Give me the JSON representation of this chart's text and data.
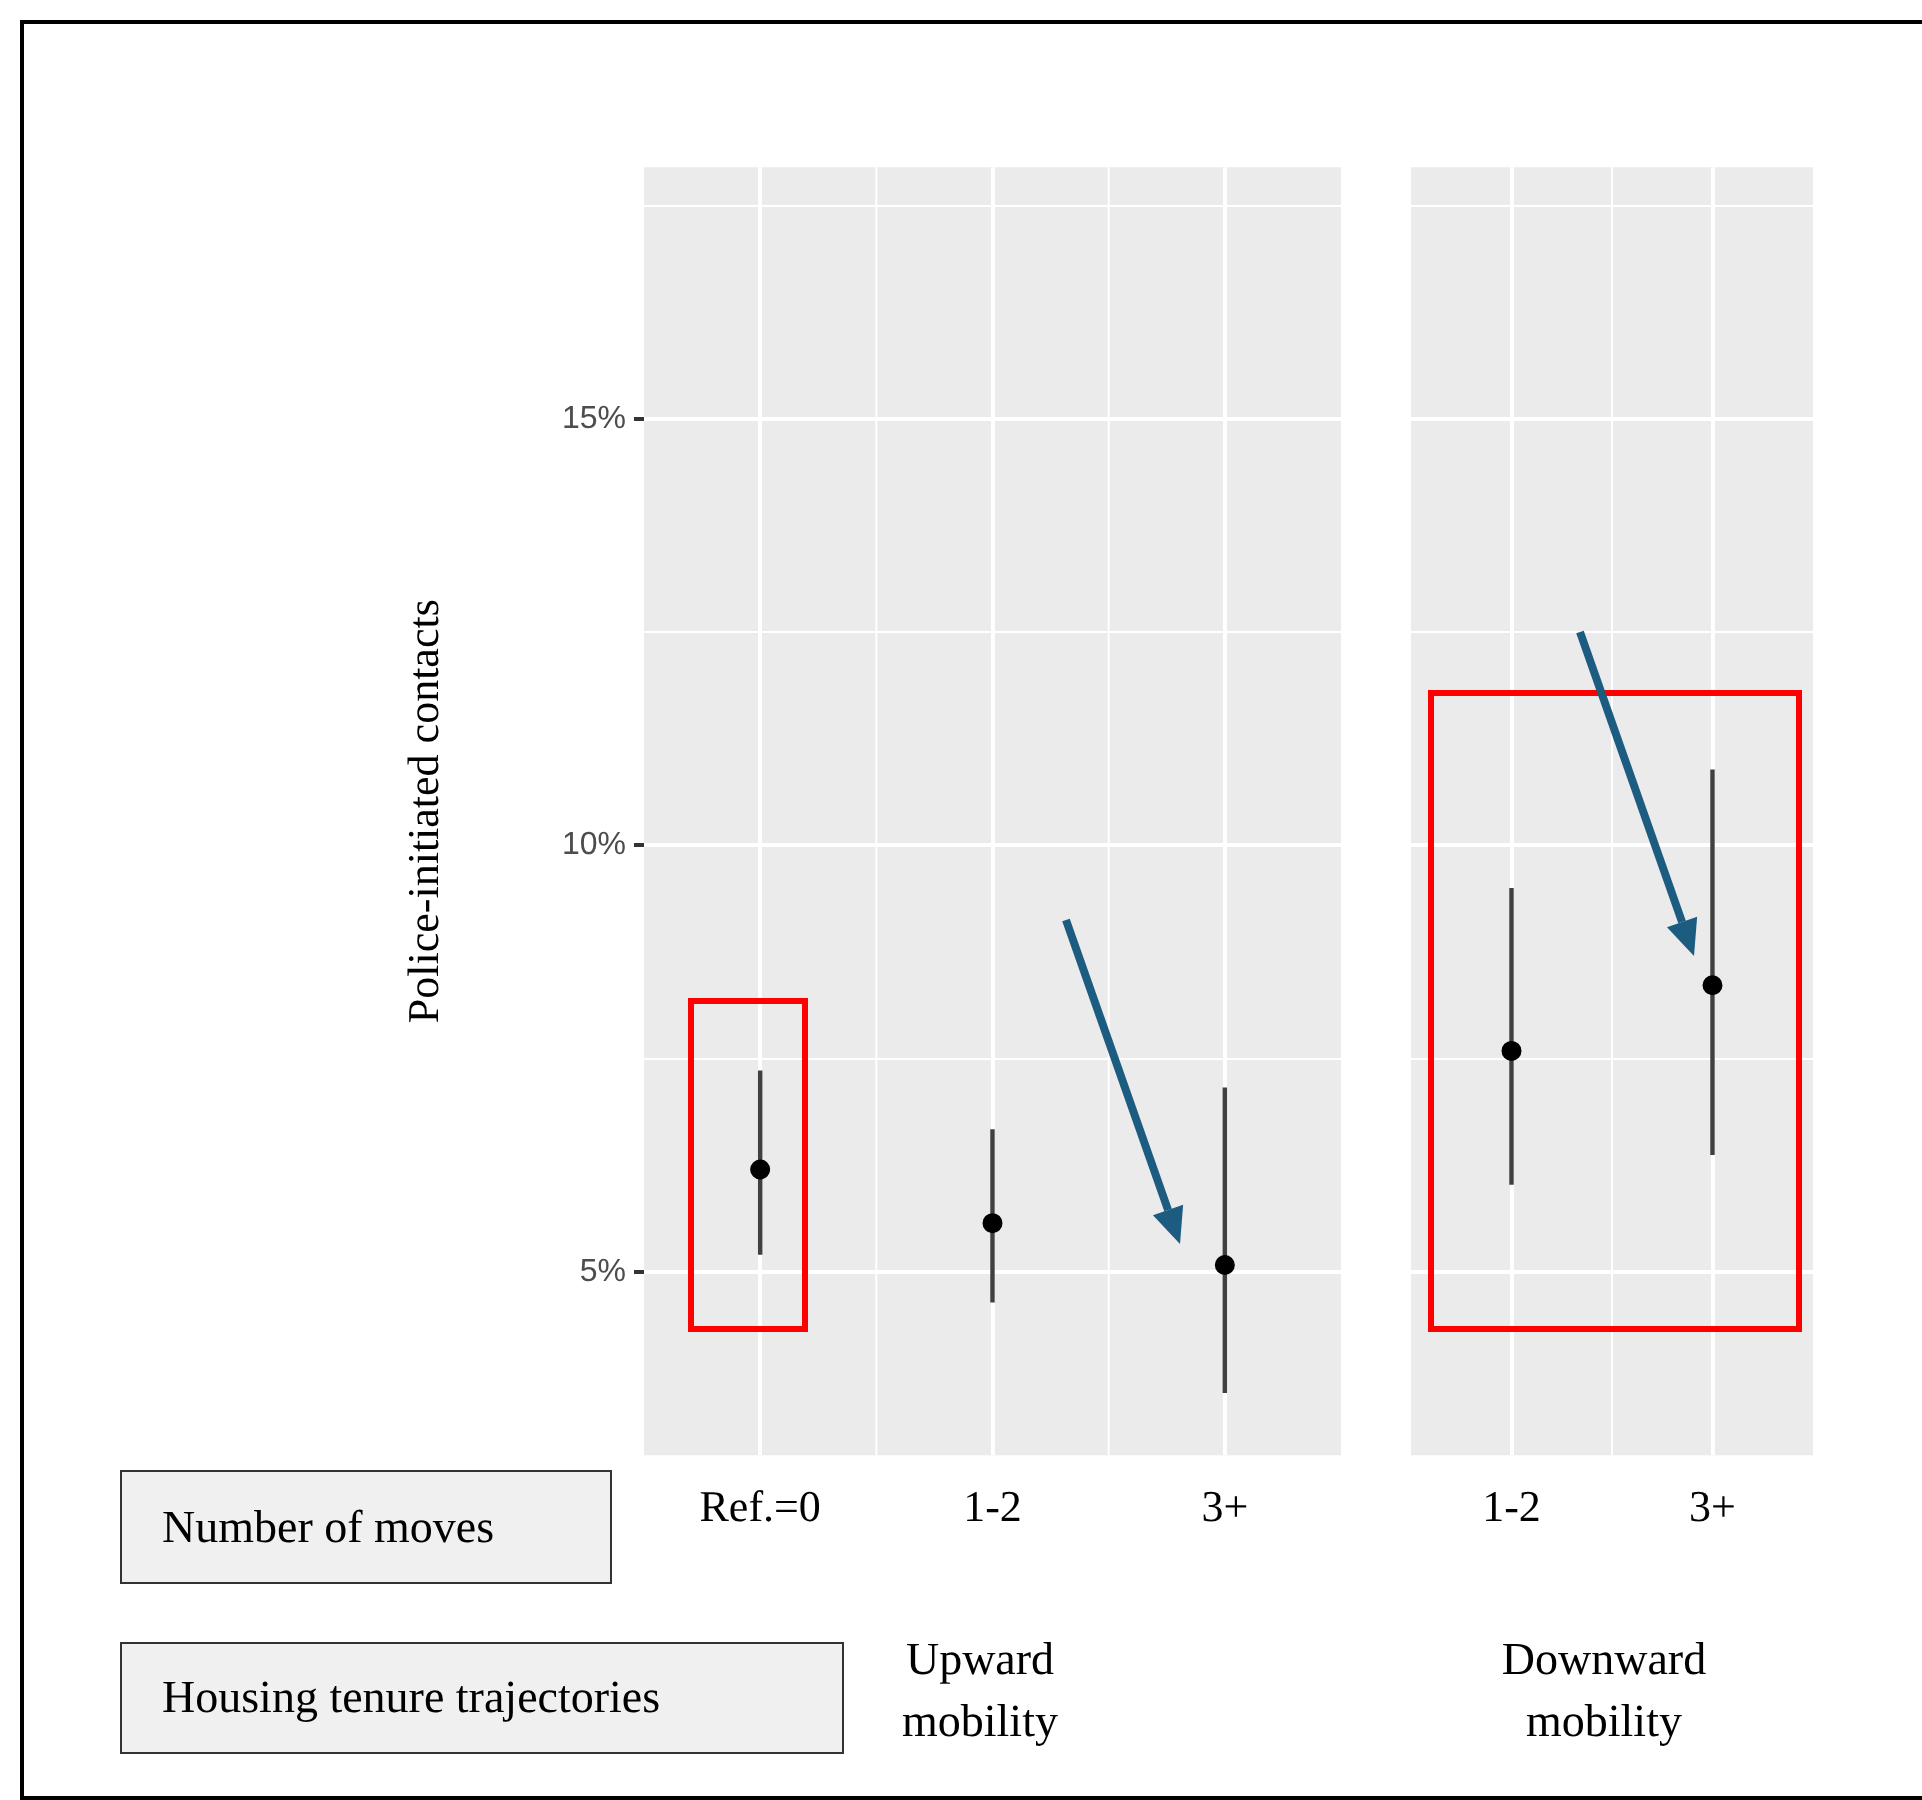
{
  "chart_data": [
    {
      "type": "scatter",
      "ylabel": "Police-initiated contacts",
      "xlabel": "Upward mobility",
      "categories": [
        "Ref.=0",
        "1-2",
        "3+"
      ],
      "series": [
        {
          "color": "#000000",
          "values": [
            6.2,
            5.57,
            5.08
          ],
          "errors": [
            [
              5.2,
              7.36
            ],
            [
              4.64,
              6.67
            ],
            [
              3.58,
              7.16
            ]
          ]
        }
      ],
      "ylim": [
        2.85,
        17.95
      ],
      "yticks": [
        {
          "value": 5,
          "label": "5%"
        },
        {
          "value": 7.5,
          "label": null
        },
        {
          "value": 10,
          "label": "10%"
        },
        {
          "value": 12.5,
          "label": null
        },
        {
          "value": 15,
          "label": "15%"
        },
        {
          "value": 17.5,
          "label": null
        }
      ],
      "grid": true,
      "legend": false,
      "marker": "circle",
      "annotations": [
        "Number of moves",
        "Housing tenure trajectories"
      ]
    },
    {
      "type": "scatter",
      "xlabel": "Downward mobility",
      "categories": [
        "1-2",
        "3+"
      ],
      "series": [
        {
          "color": "#000000",
          "values": [
            7.59,
            8.36
          ],
          "errors": [
            [
              6.02,
              9.5
            ],
            [
              6.37,
              10.89
            ]
          ]
        }
      ],
      "ylim": [
        2.85,
        17.95
      ],
      "yticks": [
        {
          "value": 5,
          "label": null
        },
        {
          "value": 7.5,
          "label": null
        },
        {
          "value": 10,
          "label": null
        },
        {
          "value": 12.5,
          "label": null
        },
        {
          "value": 15,
          "label": null
        },
        {
          "value": 17.5,
          "label": null
        }
      ],
      "grid": true,
      "legend": false,
      "marker": "circle",
      "tick_labels": "x"
    }
  ]
}
